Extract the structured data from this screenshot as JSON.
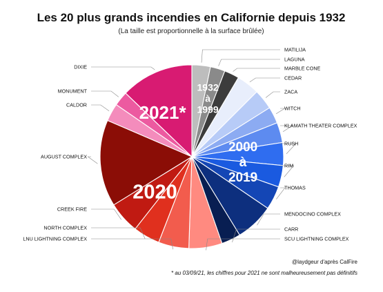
{
  "chart_data": {
    "type": "pie",
    "title": "Les 20 plus grands incendies en Californie depuis 1932",
    "subtitle": "(La taille est proportionnelle à la surface brûlée)",
    "slices": [
      {
        "label": "MATILIJA",
        "value": 220415,
        "group": "1932-1999",
        "color": "#bdbdbd"
      },
      {
        "label": "LAGUNA",
        "value": 175425,
        "group": "1932-1999",
        "color": "#8a8a8a"
      },
      {
        "label": "MARBLE CONE",
        "value": 177866,
        "group": "1932-1999",
        "color": "#3c3c3c"
      },
      {
        "label": "CEDAR",
        "value": 273246,
        "group": "2000-2019",
        "color": "#e8eefc"
      },
      {
        "label": "ZACA",
        "value": 240207,
        "group": "2000-2019",
        "color": "#b7cbf7"
      },
      {
        "label": "WITCH",
        "value": 197990,
        "group": "2000-2019",
        "color": "#8cabf2"
      },
      {
        "label": "KLAMATH THEATER COMPLEX",
        "value": 240000,
        "group": "2000-2019",
        "color": "#5d8bf0"
      },
      {
        "label": "RUSH",
        "value": 271911,
        "group": "2000-2019",
        "color": "#2f6df0"
      },
      {
        "label": "RIM",
        "value": 257314,
        "group": "2000-2019",
        "color": "#1a5ae0"
      },
      {
        "label": "THOMAS",
        "value": 281893,
        "group": "2000-2019",
        "color": "#1446b5"
      },
      {
        "label": "MENDOCINO COMPLEX",
        "value": 459123,
        "group": "2000-2019",
        "color": "#0d2f7e"
      },
      {
        "label": "CARR",
        "value": 229651,
        "group": "2000-2019",
        "color": "#081e52"
      },
      {
        "label": "SCU LIGHTNING COMPLEX",
        "value": 396624,
        "group": "2020",
        "color": "#ff8a80"
      },
      {
        "label": "LNU LIGHTNING COMPLEX",
        "value": 363220,
        "group": "2020",
        "color": "#f25c4d"
      },
      {
        "label": "NORTH COMPLEX",
        "value": 318935,
        "group": "2020",
        "color": "#e0301e"
      },
      {
        "label": "CREEK FIRE",
        "value": 379895,
        "group": "2020",
        "color": "#c01a12"
      },
      {
        "label": "AUGUST COMPLEX",
        "value": 1032648,
        "group": "2020",
        "color": "#8b0d06"
      },
      {
        "label": "CALDOR",
        "value": 212907,
        "group": "2021",
        "color": "#f48cbc"
      },
      {
        "label": "MONUMENT",
        "value": 174000,
        "group": "2021",
        "color": "#ec5aa0"
      },
      {
        "label": "DIXIE",
        "value": 869000,
        "group": "2021",
        "color": "#d81b72"
      }
    ],
    "group_labels": [
      {
        "id": "g1",
        "lines": [
          "1932",
          "à",
          "1999"
        ]
      },
      {
        "id": "g2",
        "lines": [
          "2000",
          "à",
          "2019"
        ]
      },
      {
        "id": "g3",
        "lines": [
          "2020"
        ]
      },
      {
        "id": "g4",
        "lines": [
          "2021*"
        ]
      }
    ]
  },
  "footer": {
    "credit": "@laydgeur d'après CalFire",
    "note": "* au 03/09/21, les chiffres pour 2021 ne sont malheureusement pas définitifs"
  }
}
